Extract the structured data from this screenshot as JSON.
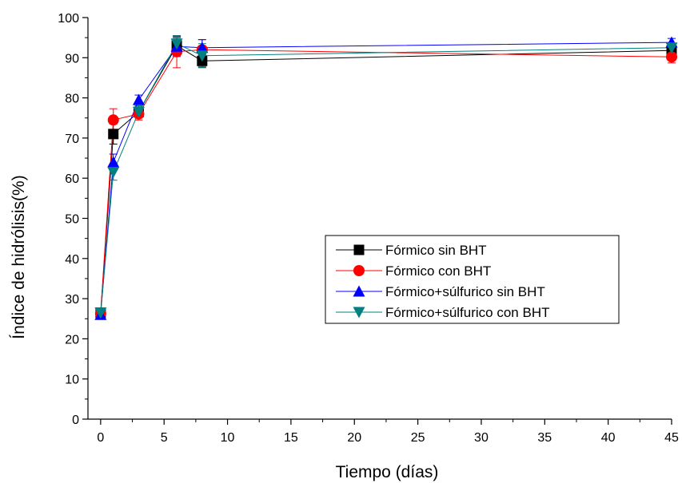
{
  "chart_data": {
    "type": "line",
    "title": "",
    "xlabel": "Tiempo (días)",
    "ylabel": "Índice de hidrólisis(%)",
    "xlim": [
      -1,
      45
    ],
    "ylim": [
      0,
      100
    ],
    "xticks": [
      0,
      5,
      10,
      15,
      20,
      25,
      30,
      35,
      40,
      45
    ],
    "yticks": [
      0,
      10,
      20,
      30,
      40,
      50,
      60,
      70,
      80,
      90,
      100
    ],
    "xtick_labels": [
      "0",
      "5",
      "10",
      "15",
      "20",
      "25",
      "30",
      "35",
      "40",
      "45"
    ],
    "ytick_labels": [
      "0",
      "10",
      "20",
      "30",
      "40",
      "50",
      "60",
      "70",
      "80",
      "90",
      "100"
    ],
    "grid": false,
    "legend_position": "center-right",
    "x": [
      0,
      1,
      3,
      6,
      8,
      45
    ],
    "series": [
      {
        "name": "Fórmico sin BHT",
        "color": "#000000",
        "marker": "square",
        "values": [
          26.5,
          71.0,
          76.5,
          93.0,
          89.2,
          91.8
        ],
        "errors": [
          0.5,
          2.5,
          1.5,
          2.0,
          1.5,
          1.0
        ]
      },
      {
        "name": "Fórmico con BHT",
        "color": "#ff0000",
        "marker": "circle",
        "values": [
          26.3,
          74.5,
          76.0,
          91.5,
          92.0,
          90.2
        ],
        "errors": [
          0.5,
          2.8,
          1.5,
          4.0,
          2.5,
          1.5
        ]
      },
      {
        "name": "Fórmico+súlfurico sin BHT",
        "color": "#0000ff",
        "marker": "triangle-up",
        "values": [
          26.0,
          64.0,
          79.5,
          92.8,
          92.5,
          93.8
        ],
        "errors": [
          0.5,
          2.0,
          1.2,
          2.5,
          2.0,
          1.0
        ]
      },
      {
        "name": "Fórmico+súlfurico con BHT",
        "color": "#008080",
        "marker": "triangle-down",
        "values": [
          26.5,
          61.5,
          76.5,
          93.5,
          90.5,
          92.5
        ],
        "errors": [
          0.5,
          2.0,
          1.5,
          2.0,
          3.0,
          1.0
        ]
      }
    ]
  }
}
